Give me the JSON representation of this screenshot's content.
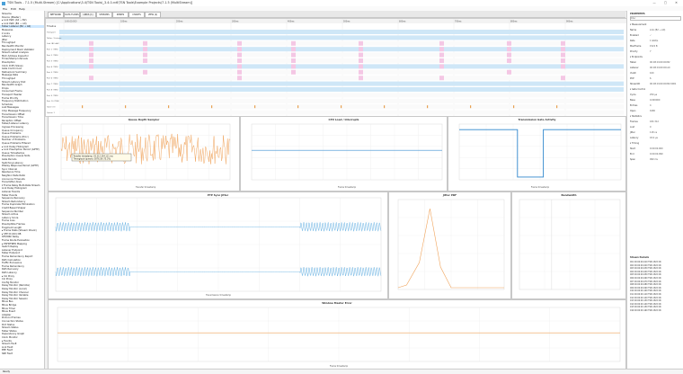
{
  "window": {
    "title": "TSN Tools - 7.1.5 (Multi.Stream) [C:\\Applications\\3.4\\TSN Tools\\_3.4.0-rc6\\TSN Tools\\Example Projects\\7.1.5 (MultiStream)]",
    "controls": "— ▢ ✕"
  },
  "menu": {
    "items": [
      "File",
      "Edit",
      "Help"
    ]
  },
  "left": {
    "items": [
      {
        "label": "Streams",
        "sel": false
      },
      {
        "label": "Device (Master)",
        "sel": false
      },
      {
        "label": "▸ Link Path (A0 → B2)",
        "sel": false
      },
      {
        "label": "▸ Link Path (B2 → A0)",
        "sel": false
      },
      {
        "label": "Talker Listener (B2 → A0)",
        "sel": true
      },
      {
        "label": "Measures",
        "sel": false
      },
      {
        "label": "▾ Links",
        "sel": false
      },
      {
        "label": "Latency",
        "sel": false
      },
      {
        "label": "Jitter",
        "sel": false
      },
      {
        "label": "Throughput",
        "sel": false
      },
      {
        "label": "Bandwidth Monitor",
        "sel": false
      },
      {
        "label": "Deployment Stack Validator",
        "sel": false
      },
      {
        "label": "Stream Latest Analysis",
        "sel": false
      },
      {
        "label": "MAC Address Inspector",
        "sel": false
      },
      {
        "label": "Timer/Stamp Intervals",
        "sel": false
      },
      {
        "label": "Preemption",
        "sel": false
      },
      {
        "label": "Clock Drift (Slave)",
        "sel": false
      },
      {
        "label": "Gate Control List",
        "sel": false
      },
      {
        "label": "Status/Link Summary",
        "sel": false
      },
      {
        "label": "Message Rate",
        "sel": false
      },
      {
        "label": "Throughput",
        "sel": false
      },
      {
        "label": "Stream Latency Dist",
        "sel": false
      },
      {
        "label": "Bandwidth Graph",
        "sel": false
      },
      {
        "label": "Drops",
        "sel": false
      },
      {
        "label": "Consumed Frame",
        "sel": false
      },
      {
        "label": "Transport Header",
        "sel": false
      },
      {
        "label": "Frame Priority",
        "sel": false
      },
      {
        "label": "Frequency Distribution",
        "sel": false
      },
      {
        "label": "Schedule",
        "sel": false
      },
      {
        "label": "Lost Messages",
        "sel": false
      },
      {
        "label": "Cmp Message Frequency",
        "sel": false
      },
      {
        "label": "Transmission Offset",
        "sel": false
      },
      {
        "label": "Transmission Time",
        "sel": false
      },
      {
        "label": "Reception Offset",
        "sel": false
      },
      {
        "label": "Talker/Listener Latency",
        "sel": false
      },
      {
        "label": "Ingress Processing",
        "sel": false
      },
      {
        "label": "Queue Occupancy",
        "sel": false
      },
      {
        "label": "Queue Problems",
        "sel": false
      },
      {
        "label": "Queue Problems (Proc)",
        "sel": false
      },
      {
        "label": "Number of Problems",
        "sel": false
      },
      {
        "label": "Queue Problems Filtered",
        "sel": false
      },
      {
        "label": "▸ Link Delay Histogram",
        "sel": false
      },
      {
        "label": "▸ Link Preemption Period (GPTP)",
        "sel": false
      },
      {
        "label": "Queue Timestamps",
        "sel": false
      },
      {
        "label": "Preemption Queue Slots",
        "sel": false
      },
      {
        "label": "Gate Periods",
        "sel": false
      },
      {
        "label": "Switching Latency",
        "sel": false
      },
      {
        "label": "PDelay Response Period (GPTP)",
        "sel": false
      },
      {
        "label": "Sync Interval",
        "sel": false
      },
      {
        "label": "Residence Time",
        "sel": false
      },
      {
        "label": "Neighbor Rate Ratio",
        "sel": false
      },
      {
        "label": "Announce Timeouts",
        "sel": false
      },
      {
        "label": "Transmitter Alive",
        "sel": false
      },
      {
        "label": "▾ Frame Relay Multi-Rate Stream",
        "sel": false
      },
      {
        "label": "Link Delay Histogram",
        "sel": false
      },
      {
        "label": "Listener Events",
        "sel": false
      },
      {
        "label": "Talker Events",
        "sel": false
      },
      {
        "label": "Sequence Recovery",
        "sel": false
      },
      {
        "label": "Stream Redundancy",
        "sel": false
      },
      {
        "label": "Frame Duplicate Elimination",
        "sel": false
      },
      {
        "label": "Credit Based Shaper",
        "sel": false
      },
      {
        "label": "Sequence Number",
        "sel": false
      },
      {
        "label": "Stream Active",
        "sel": false
      },
      {
        "label": "Latency Score",
        "sel": false
      },
      {
        "label": "Frame Loss",
        "sel": false
      },
      {
        "label": "Preemptible Frames",
        "sel": false
      },
      {
        "label": "Fragment Length",
        "sel": false
      },
      {
        "label": "▸ Frame Stats (Stream Check)",
        "sel": false
      },
      {
        "label": "▸ SFP DI (RX) DB",
        "sel": false
      },
      {
        "label": "SFP/DRC Relay",
        "sel": false
      },
      {
        "label": "Frame Route Evaluation",
        "sel": false
      },
      {
        "label": "▸ PSFP/FRER Mapping",
        "sel": false
      },
      {
        "label": "Switch Replay",
        "sel": false
      },
      {
        "label": "Listener Endpoint",
        "sel": false
      },
      {
        "label": "Talker Endpoint",
        "sel": false
      },
      {
        "label": "Frame Redundancy Report",
        "sel": false
      },
      {
        "label": "Path Calculation",
        "sel": false
      },
      {
        "label": "Traffic Exclusions",
        "sel": false
      },
      {
        "label": "Frame Redundancy",
        "sel": false
      },
      {
        "label": "Path Recovery",
        "sel": false
      },
      {
        "label": "Path Latency",
        "sel": false
      },
      {
        "label": "▸ CLI Proxy",
        "sel": false
      },
      {
        "label": "CLI Proxy",
        "sel": false
      },
      {
        "label": "Config Monitor",
        "sel": false
      },
      {
        "label": "Delay Monitor (Remote)",
        "sel": false
      },
      {
        "label": "Delay Monitor (Local)",
        "sel": false
      },
      {
        "label": "Delay Monitor Channel",
        "sel": false
      },
      {
        "label": "Delay Monitor Variable",
        "sel": false
      },
      {
        "label": "Delay Monitor Session",
        "sel": false
      },
      {
        "label": "Mbus Bus",
        "sel": false
      },
      {
        "label": "Mbus Bridge",
        "sel": false
      },
      {
        "label": "Mbus Timer",
        "sel": false
      },
      {
        "label": "Mbus Event",
        "sel": false
      },
      {
        "label": "Adapter",
        "sel": false
      },
      {
        "label": "Protocol Frames",
        "sel": false
      },
      {
        "label": "Connection Status",
        "sel": false
      },
      {
        "label": "Port Status",
        "sel": false
      },
      {
        "label": "Stream Status",
        "sel": false
      },
      {
        "label": "Talker Status",
        "sel": false
      },
      {
        "label": "Dependency Graph",
        "sel": false
      },
      {
        "label": "Clock Monitor",
        "sel": false
      },
      {
        "label": "▸ Events",
        "sel": false
      },
      {
        "label": "Stream Fault",
        "sel": false
      },
      {
        "label": "Link Fault",
        "sel": false
      },
      {
        "label": "EEE Fault",
        "sel": false
      },
      {
        "label": "SRP Fault",
        "sel": false
      }
    ]
  },
  "tabs": [
    {
      "label": "NETWORK",
      "active": false
    },
    {
      "label": "DATA FLOWS",
      "active": false
    },
    {
      "label": "LINKS (1)",
      "active": true
    },
    {
      "label": "STREAMS",
      "active": false
    },
    {
      "label": "SERIES",
      "active": false
    },
    {
      "label": "CHARTS",
      "active": false
    },
    {
      "label": "VIEW (2)",
      "active": false
    }
  ],
  "timeline": {
    "time_ticks": [
      "0:00:00:000",
      "100ms",
      "200ms",
      "300ms",
      "400ms",
      "500ms",
      "600ms",
      "700ms",
      "800ms",
      "900ms"
    ],
    "header": "Timeline",
    "lanes": [
      "Transport",
      "Talker / Listener",
      "Link (B2→A0)",
      "Port 1 (TSN)",
      "Port 2 (TSN)",
      "Port 3 (TSN)",
      "Port 4 (TSN)",
      "Port 5 (TSN)",
      "Port 6 (TSN)",
      "Port 7 (TSN)",
      "Port 8 (TSN)",
      "Port 9 (TSN)",
      "Port 10 (TSN)",
      "Gate Ctrl",
      "Queue 1"
    ],
    "event_color": "#f4c7e4"
  },
  "charts": {
    "c1": {
      "title": "Queue Depth Sampler",
      "xlabel": "Transfer timestamp",
      "tooltip_lines": [
        "Transfer timestamp: 55.212.354.111 ms",
        "Throughput (queue): 3876.38 (75.3%)"
      ]
    },
    "c2": {
      "title": "CPU Load / Interrupts",
      "xlabel": "Frame timestamp"
    },
    "c3": {
      "title": "Transmission Gate Activity",
      "xlabel": "Frame timestamp"
    },
    "c4": {
      "title": "PTP Sync Jitter",
      "xlabel": "Transmission timestamp"
    },
    "c5": {
      "title": "Jitter PDF",
      "xlabel": ""
    },
    "c6": {
      "title": "Bandwidth",
      "xlabel": ""
    },
    "c7": {
      "title": "Window Master Error",
      "xlabel": "Frame timestamp"
    }
  },
  "right": {
    "header": "PROPERTIES",
    "filter_placeholder": "Filter",
    "lines": [
      {
        "k": "▾ Measurement",
        "v": ""
      },
      {
        "k": "Name",
        "v": "Link (B2 → A0)"
      },
      {
        "k": "Enabled",
        "v": "✓"
      },
      {
        "k": "Rate",
        "v": "1 Gbit/s"
      },
      {
        "k": "MaxFrame",
        "v": "1522 B"
      },
      {
        "k": "Priority",
        "v": "7"
      },
      {
        "k": "▾ Endpoints",
        "v": ""
      },
      {
        "k": "Talker",
        "v": "00:1B:19:00:00:B2"
      },
      {
        "k": "Listener",
        "v": "00:1B:19:00:00:A0"
      },
      {
        "k": "VLAN",
        "v": "100"
      },
      {
        "k": "PCP",
        "v": "6"
      },
      {
        "k": "StreamID",
        "v": "00:1B:19:00:00:B2:0001"
      },
      {
        "k": "▾ Gate Control",
        "v": ""
      },
      {
        "k": "Cycle",
        "v": "250 µs"
      },
      {
        "k": "Base",
        "v": "0.000000"
      },
      {
        "k": "Entries",
        "v": "4"
      },
      {
        "k": "Open",
        "v": "0x80"
      },
      {
        "k": "▾ Statistics",
        "v": ""
      },
      {
        "k": "Frames",
        "v": "184 312"
      },
      {
        "k": "Lost",
        "v": "0"
      },
      {
        "k": "Jitter",
        "v": "118 ns"
      },
      {
        "k": "Latency",
        "v": "18.4 µs"
      },
      {
        "k": "▾ Timing",
        "v": ""
      },
      {
        "k": "Start",
        "v": "0:00:00.000"
      },
      {
        "k": "End",
        "v": "0:00:00.999"
      },
      {
        "k": "Span",
        "v": "999 ms"
      }
    ],
    "table_title": "Stream Packets",
    "table_rows": [
      "001  00:00:00.010  TSN  1522  OK",
      "002  00:00:00.020  TSN  1522  OK",
      "003  00:00:00.030  TSN  1522  OK",
      "004  00:00:00.040  TSN  1522  OK",
      "005  00:00:00.050  TSN  1522  OK",
      "006  00:00:00.060  TSN  1522  OK",
      "007  00:00:00.070  TSN  1522  OK",
      "008  00:00:00.080  TSN  1522  OK",
      "009  00:00:00.090  TSN  1522  OK",
      "010  00:00:00.100  TSN  1522  OK",
      "011  00:00:00.110  TSN  1522  OK",
      "012  00:00:00.120  TSN  1522  OK",
      "013  00:00:00.130  TSN  1522  OK",
      "014  00:00:00.140  TSN  1522  OK",
      "015  00:00:00.150  TSN  1522  OK",
      "016  00:00:00.160  TSN  1522  OK"
    ]
  },
  "status": {
    "text": "Ready"
  }
}
